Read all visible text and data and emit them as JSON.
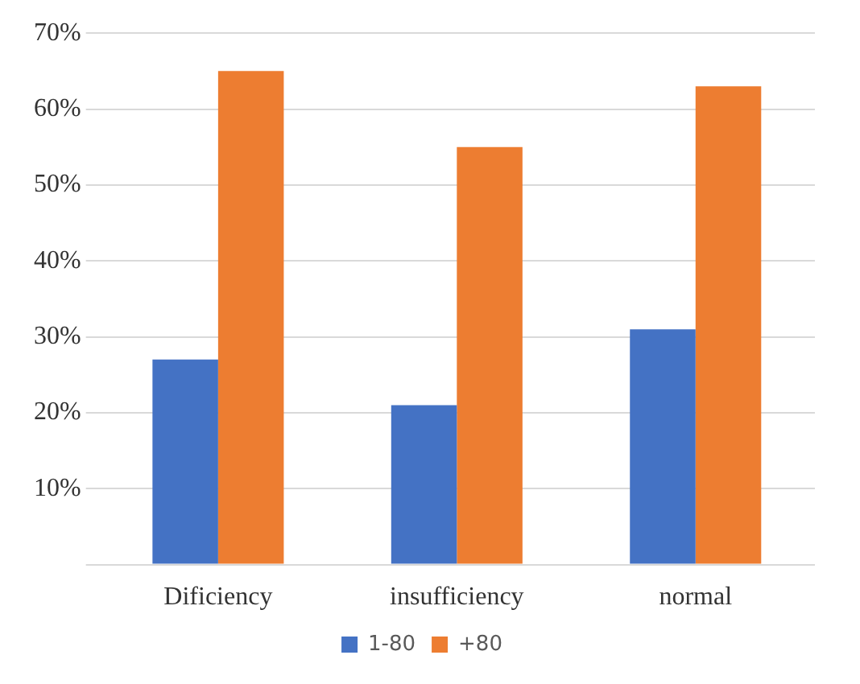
{
  "chart_data": {
    "type": "bar",
    "categories": [
      "Dificiency",
      "insufficiency",
      "normal"
    ],
    "series": [
      {
        "name": "1-80",
        "color": "#4472c4",
        "values": [
          27,
          21,
          31
        ]
      },
      {
        "name": "+80",
        "color": "#ed7d31",
        "values": [
          65,
          55,
          63
        ]
      }
    ],
    "ylim": [
      0,
      70
    ],
    "yticks": [
      {
        "value": 0,
        "label": null
      },
      {
        "value": 10,
        "label": "10%"
      },
      {
        "value": 20,
        "label": "20%"
      },
      {
        "value": 30,
        "label": "30%"
      },
      {
        "value": 40,
        "label": "40%"
      },
      {
        "value": 50,
        "label": "50%"
      },
      {
        "value": 60,
        "label": "60%"
      },
      {
        "value": 70,
        "label": "70%"
      }
    ],
    "grid": "y",
    "legend": "bottom"
  }
}
